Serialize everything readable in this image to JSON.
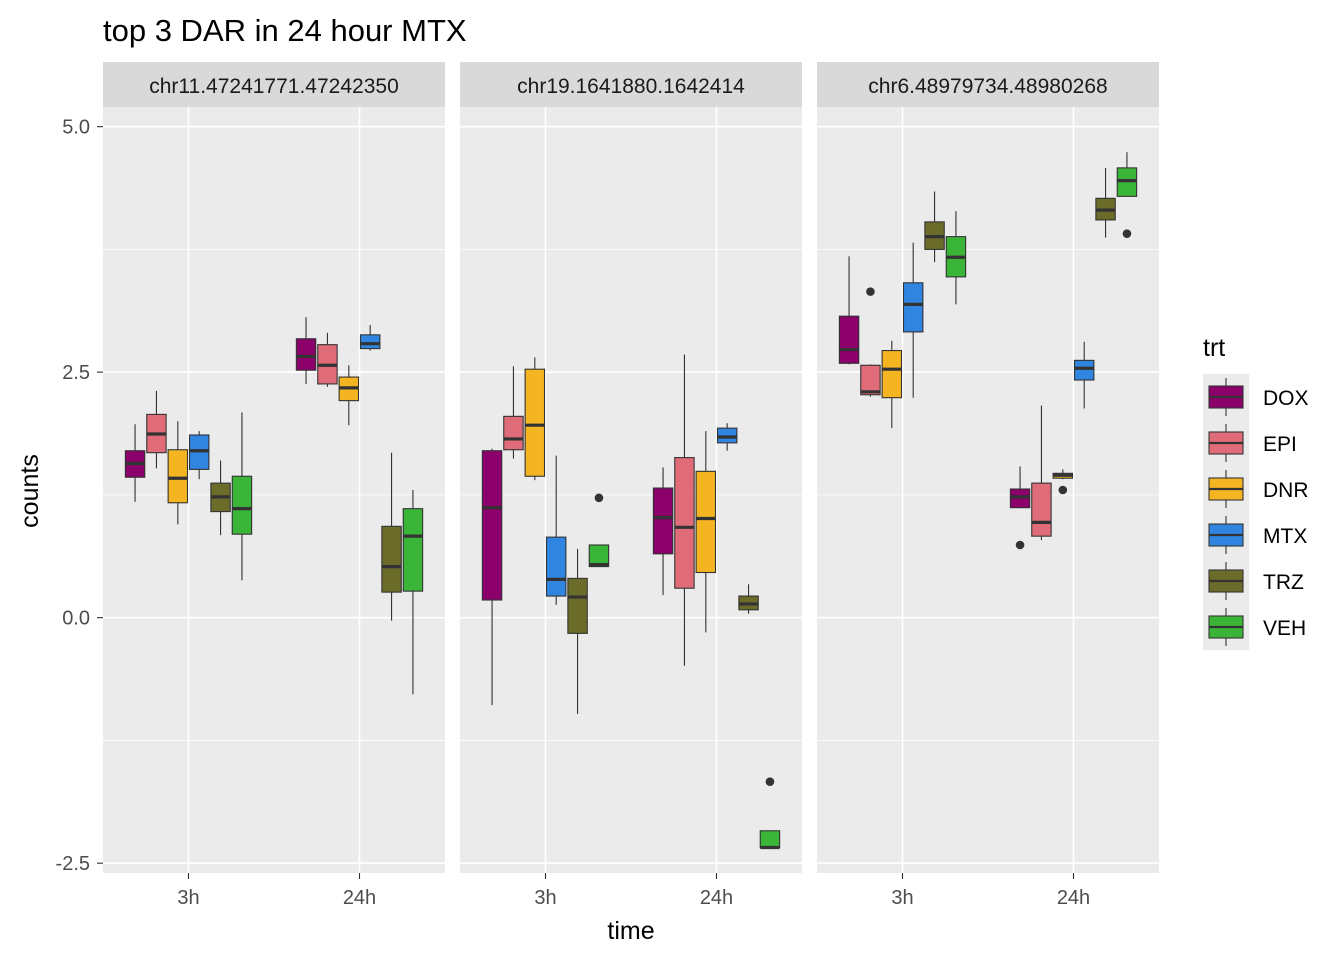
{
  "chart_data": {
    "type": "boxplot",
    "title": "top 3 DAR in 24 hour MTX",
    "xlabel": "time",
    "ylabel": "counts",
    "ylim": [
      -2.6,
      5.2
    ],
    "yticks": [
      -2.5,
      0.0,
      2.5,
      5.0
    ],
    "ytick_labels": [
      "-2.5",
      "0.0",
      "2.5",
      "5.0"
    ],
    "categories": [
      "3h",
      "24h"
    ],
    "grid": true,
    "legend": {
      "title": "trt",
      "position": "right",
      "entries": [
        {
          "name": "DOX",
          "color": "#8B006B"
        },
        {
          "name": "EPI",
          "color": "#E06C7A"
        },
        {
          "name": "DNR",
          "color": "#F5B523"
        },
        {
          "name": "MTX",
          "color": "#2F85E0"
        },
        {
          "name": "TRZ",
          "color": "#6B6B2A"
        },
        {
          "name": "VEH",
          "color": "#3BB537"
        }
      ]
    },
    "panels": [
      {
        "label": "chr11.47241771.47242350",
        "groups": {
          "3h": {
            "DOX": {
              "min": 1.18,
              "q1": 1.43,
              "median": 1.57,
              "q3": 1.7,
              "max": 1.97,
              "outliers": []
            },
            "EPI": {
              "min": 1.52,
              "q1": 1.68,
              "median": 1.87,
              "q3": 2.07,
              "max": 2.31,
              "outliers": []
            },
            "DNR": {
              "min": 0.95,
              "q1": 1.17,
              "median": 1.42,
              "q3": 1.71,
              "max": 2.0,
              "outliers": []
            },
            "MTX": {
              "min": 1.41,
              "q1": 1.51,
              "median": 1.7,
              "q3": 1.86,
              "max": 1.9,
              "outliers": []
            },
            "TRZ": {
              "min": 0.84,
              "q1": 1.08,
              "median": 1.23,
              "q3": 1.37,
              "max": 1.6,
              "outliers": []
            },
            "VEH": {
              "min": 0.38,
              "q1": 0.85,
              "median": 1.11,
              "q3": 1.44,
              "max": 2.09,
              "outliers": []
            }
          },
          "24h": {
            "DOX": {
              "min": 2.38,
              "q1": 2.52,
              "median": 2.66,
              "q3": 2.84,
              "max": 3.06,
              "outliers": []
            },
            "EPI": {
              "min": 2.35,
              "q1": 2.38,
              "median": 2.57,
              "q3": 2.78,
              "max": 2.9,
              "outliers": []
            },
            "DNR": {
              "min": 1.96,
              "q1": 2.21,
              "median": 2.34,
              "q3": 2.45,
              "max": 2.57,
              "outliers": []
            },
            "MTX": {
              "min": 2.72,
              "q1": 2.74,
              "median": 2.79,
              "q3": 2.88,
              "max": 2.98,
              "outliers": []
            },
            "TRZ": {
              "min": -0.03,
              "q1": 0.26,
              "median": 0.52,
              "q3": 0.93,
              "max": 1.68,
              "outliers": []
            },
            "VEH": {
              "min": -0.78,
              "q1": 0.27,
              "median": 0.83,
              "q3": 1.11,
              "max": 1.3,
              "outliers": []
            }
          }
        }
      },
      {
        "label": "chr19.1641880.1642414",
        "groups": {
          "3h": {
            "DOX": {
              "min": -0.89,
              "q1": 0.18,
              "median": 1.12,
              "q3": 1.7,
              "max": 1.72,
              "outliers": []
            },
            "EPI": {
              "min": 1.62,
              "q1": 1.71,
              "median": 1.82,
              "q3": 2.05,
              "max": 2.56,
              "outliers": []
            },
            "DNR": {
              "min": 1.4,
              "q1": 1.44,
              "median": 1.96,
              "q3": 2.53,
              "max": 2.65,
              "outliers": []
            },
            "MTX": {
              "min": 0.13,
              "q1": 0.22,
              "median": 0.39,
              "q3": 0.82,
              "max": 1.65,
              "outliers": []
            },
            "TRZ": {
              "min": -0.98,
              "q1": -0.16,
              "median": 0.21,
              "q3": 0.4,
              "max": 0.7,
              "outliers": []
            },
            "VEH": {
              "min": 0.52,
              "q1": 0.52,
              "median": 0.54,
              "q3": 0.74,
              "max": 0.74,
              "outliers": [
                1.22
              ]
            }
          },
          "24h": {
            "DOX": {
              "min": 0.23,
              "q1": 0.65,
              "median": 1.02,
              "q3": 1.32,
              "max": 1.53,
              "outliers": []
            },
            "EPI": {
              "min": -0.49,
              "q1": 0.3,
              "median": 0.92,
              "q3": 1.63,
              "max": 2.68,
              "outliers": []
            },
            "DNR": {
              "min": -0.15,
              "q1": 0.46,
              "median": 1.01,
              "q3": 1.49,
              "max": 1.9,
              "outliers": []
            },
            "MTX": {
              "min": 1.7,
              "q1": 1.78,
              "median": 1.84,
              "q3": 1.93,
              "max": 1.98,
              "outliers": []
            },
            "TRZ": {
              "min": 0.04,
              "q1": 0.08,
              "median": 0.14,
              "q3": 0.22,
              "max": 0.34,
              "outliers": []
            },
            "VEH": {
              "min": -2.34,
              "q1": -2.34,
              "median": -2.34,
              "q3": -2.17,
              "max": -2.17,
              "outliers": [
                -1.67
              ]
            }
          }
        }
      },
      {
        "label": "chr6.48979734.48980268",
        "groups": {
          "3h": {
            "DOX": {
              "min": 2.58,
              "q1": 2.59,
              "median": 2.73,
              "q3": 3.07,
              "max": 3.68,
              "outliers": []
            },
            "EPI": {
              "min": 2.25,
              "q1": 2.27,
              "median": 2.3,
              "q3": 2.57,
              "max": 2.58,
              "outliers": [
                3.32
              ]
            },
            "DNR": {
              "min": 1.93,
              "q1": 2.24,
              "median": 2.53,
              "q3": 2.72,
              "max": 2.82,
              "outliers": []
            },
            "MTX": {
              "min": 2.24,
              "q1": 2.91,
              "median": 3.19,
              "q3": 3.41,
              "max": 3.82,
              "outliers": []
            },
            "TRZ": {
              "min": 3.62,
              "q1": 3.75,
              "median": 3.88,
              "q3": 4.03,
              "max": 4.34,
              "outliers": []
            },
            "VEH": {
              "min": 3.19,
              "q1": 3.47,
              "median": 3.67,
              "q3": 3.88,
              "max": 4.14,
              "outliers": []
            }
          },
          "24h": {
            "DOX": {
              "min": 1.12,
              "q1": 1.12,
              "median": 1.23,
              "q3": 1.31,
              "max": 1.54,
              "outliers": [
                0.74
              ]
            },
            "EPI": {
              "min": 0.79,
              "q1": 0.83,
              "median": 0.97,
              "q3": 1.37,
              "max": 2.16,
              "outliers": []
            },
            "DNR": {
              "min": 1.41,
              "q1": 1.42,
              "median": 1.45,
              "q3": 1.47,
              "max": 1.51,
              "outliers": [
                1.3
              ]
            },
            "MTX": {
              "min": 2.13,
              "q1": 2.42,
              "median": 2.54,
              "q3": 2.62,
              "max": 2.81,
              "outliers": []
            },
            "TRZ": {
              "min": 3.87,
              "q1": 4.05,
              "median": 4.15,
              "q3": 4.27,
              "max": 4.58,
              "outliers": []
            },
            "VEH": {
              "min": 4.29,
              "q1": 4.29,
              "median": 4.45,
              "q3": 4.58,
              "max": 4.74,
              "outliers": [
                3.91
              ]
            }
          }
        }
      }
    ]
  }
}
